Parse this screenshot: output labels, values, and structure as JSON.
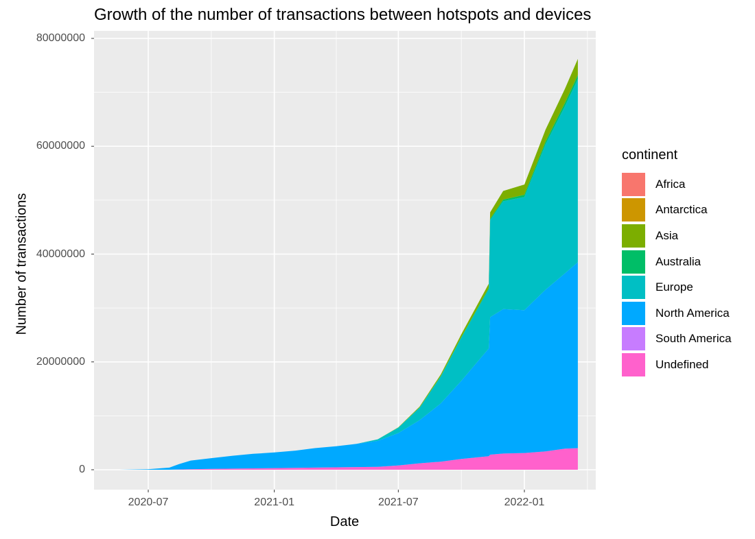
{
  "chart_data": {
    "type": "area",
    "stacked": true,
    "title": "Growth of the number of transactions between hotspots and devices",
    "xlabel": "Date",
    "ylabel": "Number of transactions",
    "x_ticks": [
      "2020-07",
      "2021-01",
      "2021-07",
      "2022-01"
    ],
    "y_ticks": [
      "0",
      "20000000",
      "40000000",
      "60000000",
      "80000000"
    ],
    "ylim": [
      0,
      80000000
    ],
    "xlim": [
      "2020-05-01",
      "2022-04-15"
    ],
    "grid": true,
    "legend_title": "continent",
    "legend_position": "right",
    "x": [
      "2020-05-20",
      "2020-07-01",
      "2020-08-01",
      "2020-08-15",
      "2020-09-01",
      "2020-10-01",
      "2020-11-01",
      "2020-12-01",
      "2021-01-01",
      "2021-02-01",
      "2021-03-01",
      "2021-04-01",
      "2021-05-01",
      "2021-06-01",
      "2021-07-01",
      "2021-08-01",
      "2021-09-01",
      "2021-10-01",
      "2021-11-10",
      "2021-11-12",
      "2021-12-01",
      "2022-01-01",
      "2022-02-01",
      "2022-03-01",
      "2022-03-20"
    ],
    "series": [
      {
        "name": "Africa",
        "color": "#F8766D",
        "values": [
          0,
          0,
          0,
          0,
          0,
          0,
          0,
          0,
          0,
          0,
          0,
          0,
          0,
          0,
          0,
          0,
          0,
          0,
          0,
          0,
          0,
          0,
          0,
          0,
          0
        ]
      },
      {
        "name": "Antarctica",
        "color": "#CD9600",
        "values": [
          0,
          0,
          0,
          0,
          0,
          0,
          0,
          0,
          0,
          0,
          0,
          0,
          0,
          0,
          0,
          0,
          0,
          0,
          0,
          0,
          0,
          0,
          0,
          0,
          0
        ]
      },
      {
        "name": "Asia",
        "color": "#7CAE00",
        "values": [
          0,
          0,
          0,
          0,
          0,
          0,
          0,
          0,
          0,
          0,
          0,
          0,
          0,
          0,
          50000,
          150000,
          300000,
          500000,
          800000,
          1200000,
          1600000,
          1900000,
          2200000,
          2600000,
          3000000
        ]
      },
      {
        "name": "Australia",
        "color": "#00BE67",
        "values": [
          0,
          0,
          0,
          0,
          0,
          0,
          0,
          0,
          0,
          0,
          0,
          0,
          0,
          0,
          20000,
          50000,
          80000,
          150000,
          200000,
          250000,
          300000,
          400000,
          500000,
          600000,
          700000
        ]
      },
      {
        "name": "Europe",
        "color": "#00BFC4",
        "values": [
          0,
          0,
          0,
          0,
          0,
          0,
          0,
          0,
          0,
          0,
          0,
          0,
          0,
          300000,
          1000000,
          2300000,
          5000000,
          8000000,
          11000000,
          18000000,
          20000000,
          21000000,
          27000000,
          31000000,
          34000000
        ]
      },
      {
        "name": "North America",
        "color": "#00A9FF",
        "values": [
          0,
          100000,
          400000,
          1000000,
          1600000,
          2000000,
          2400000,
          2700000,
          2900000,
          3200000,
          3600000,
          3900000,
          4300000,
          4800000,
          6000000,
          8000000,
          10800000,
          14500000,
          20000000,
          25500000,
          26800000,
          26500000,
          30000000,
          32500000,
          34500000
        ]
      },
      {
        "name": "South America",
        "color": "#C77CFF",
        "values": [
          0,
          0,
          0,
          0,
          0,
          0,
          0,
          0,
          0,
          0,
          0,
          0,
          0,
          0,
          0,
          0,
          0,
          0,
          0,
          0,
          0,
          0,
          0,
          0,
          0
        ]
      },
      {
        "name": "Undefined",
        "color": "#FF61CC",
        "values": [
          0,
          0,
          0,
          50000,
          100000,
          150000,
          200000,
          250000,
          300000,
          350000,
          400000,
          450000,
          500000,
          550000,
          800000,
          1200000,
          1500000,
          2000000,
          2500000,
          2800000,
          3000000,
          3100000,
          3400000,
          3900000,
          4000000
        ]
      }
    ]
  }
}
